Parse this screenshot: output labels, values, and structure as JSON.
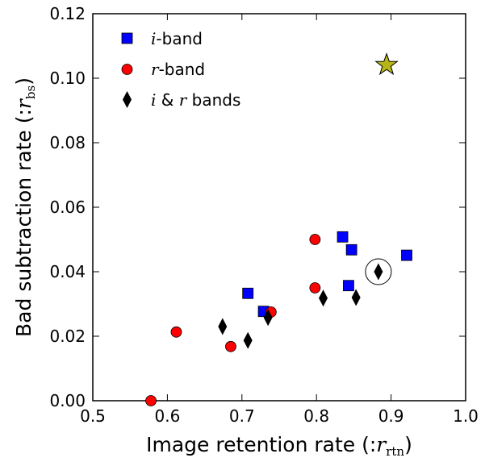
{
  "chart_data": {
    "type": "scatter",
    "xlabel": {
      "prefix": "Image retention rate (:",
      "var": "r",
      "sub": "rtn",
      "suffix": ")"
    },
    "ylabel": {
      "prefix": "Bad subtraction rate (:",
      "var": "r",
      "sub": "bs",
      "suffix": ")"
    },
    "xlim": [
      0.5,
      1.0
    ],
    "ylim": [
      0.0,
      0.12
    ],
    "xticks": [
      "0.5",
      "0.6",
      "0.7",
      "0.8",
      "0.9",
      "1.0"
    ],
    "yticks": [
      "0.00",
      "0.02",
      "0.04",
      "0.06",
      "0.08",
      "0.10",
      "0.12"
    ],
    "grid": false,
    "legend_position": "top-left",
    "series": [
      {
        "name": "i-band",
        "label_var": "i",
        "label_rest": "-band",
        "marker": "square",
        "color": "#0000ff",
        "x": [
          0.708,
          0.729,
          0.835,
          0.843,
          0.847,
          0.921
        ],
        "y": [
          0.0333,
          0.0277,
          0.0508,
          0.0357,
          0.0468,
          0.0451
        ]
      },
      {
        "name": "r-band",
        "label_var": "r",
        "label_rest": "-band",
        "marker": "circle",
        "color": "#ff0000",
        "x": [
          0.578,
          0.612,
          0.685,
          0.739,
          0.798,
          0.798
        ],
        "y": [
          0.0,
          0.0213,
          0.0168,
          0.0275,
          0.05,
          0.035
        ]
      },
      {
        "name": "i & r bands",
        "label_var": "i",
        "label_mid": " & ",
        "label_var2": "r",
        "label_rest": " bands",
        "marker": "diamond",
        "color": "#000000",
        "x": [
          0.674,
          0.708,
          0.735,
          0.809,
          0.853,
          0.883
        ],
        "y": [
          0.023,
          0.0187,
          0.0258,
          0.0318,
          0.032,
          0.04
        ]
      }
    ],
    "highlight": {
      "shape": "open-circle",
      "x": 0.883,
      "y": 0.04,
      "color": "#000000"
    },
    "star": {
      "shape": "star",
      "x": 0.894,
      "y": 0.1041,
      "color": "#b5b519"
    }
  }
}
